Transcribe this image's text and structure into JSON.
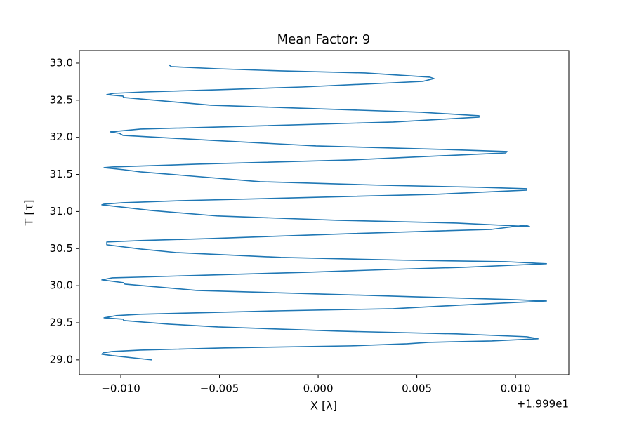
{
  "chart_data": {
    "type": "line",
    "title": "Mean Factor: 9",
    "x_label": "X [λ]",
    "y_label": "T [τ]",
    "x_offset_text": "+1.999e1",
    "xlim": [
      19.9779,
      20.0027
    ],
    "ylim": [
      28.8,
      33.17
    ],
    "xticks": [
      {
        "value": 19.98,
        "label": "−0.010"
      },
      {
        "value": 19.985,
        "label": "−0.005"
      },
      {
        "value": 19.99,
        "label": "0.000"
      },
      {
        "value": 19.995,
        "label": "0.005"
      },
      {
        "value": 20.0,
        "label": "0.010"
      }
    ],
    "yticks": [
      {
        "value": 29,
        "label": "29.0"
      },
      29.5,
      {
        "value": 30,
        "label": "30.0"
      },
      30.5,
      {
        "value": 31,
        "label": "31.0"
      },
      31.5,
      {
        "value": 32,
        "label": "32.0"
      },
      32.5,
      {
        "value": 33,
        "label": "33.0"
      }
    ],
    "grid": false,
    "x": [
      19.98157,
      19.97957,
      19.97904,
      19.97911,
      19.97957,
      19.981,
      19.98527,
      19.99167,
      19.99452,
      19.99559,
      19.99879,
      20.00114,
      20.00057,
      19.99701,
      19.99096,
      19.98491,
      19.98242,
      19.98014,
      19.98014,
      19.97915,
      19.97975,
      19.981,
      19.98384,
      19.98811,
      19.99381,
      19.99719,
      20.00157,
      19.99986,
      19.99488,
      19.98883,
      19.98384,
      19.98021,
      19.98014,
      19.97904,
      19.97957,
      19.981,
      19.98456,
      19.98954,
      19.99381,
      19.99737,
      20.00157,
      19.9995,
      19.99452,
      19.98811,
      19.98278,
      19.981,
      19.97929,
      19.97929,
      19.981,
      19.98456,
      19.99167,
      19.99879,
      20.0005,
      20.00071,
      19.99701,
      19.99096,
      19.98491,
      19.98153,
      19.97904,
      19.97915,
      19.98011,
      19.98313,
      19.98883,
      19.99594,
      20.00057,
      20.00057,
      19.99826,
      19.9931,
      19.98705,
      19.981,
      19.98014,
      19.97915,
      19.97957,
      19.98384,
      19.99167,
      19.9995,
      19.99957,
      19.9963,
      19.98989,
      19.98456,
      19.98011,
      19.97993,
      19.97947,
      19.981,
      19.98633,
      19.99381,
      19.99815,
      19.99815,
      19.99523,
      19.98883,
      19.98456,
      19.98014,
      19.98011,
      19.97929,
      19.97964,
      19.98121,
      19.98491,
      19.98918,
      19.99381,
      19.9953,
      19.99587,
      19.99566,
      19.99238,
      19.98811,
      19.98491,
      19.98256,
      19.98242
    ],
    "series": [
      {
        "color": "#1f77b4",
        "values": [
          29.0,
          29.057,
          29.076,
          29.095,
          29.113,
          29.132,
          29.161,
          29.189,
          29.217,
          29.236,
          29.255,
          29.284,
          29.312,
          29.35,
          29.388,
          29.444,
          29.482,
          29.53,
          29.548,
          29.567,
          29.596,
          29.615,
          29.634,
          29.662,
          29.69,
          29.738,
          29.794,
          29.813,
          29.851,
          29.898,
          29.936,
          30.021,
          30.04,
          30.078,
          30.106,
          30.116,
          30.144,
          30.182,
          30.22,
          30.248,
          30.296,
          30.324,
          30.343,
          30.381,
          30.447,
          30.494,
          30.551,
          30.589,
          30.608,
          30.636,
          30.702,
          30.759,
          30.816,
          30.797,
          30.844,
          30.882,
          30.939,
          31.014,
          31.09,
          31.099,
          31.118,
          31.147,
          31.184,
          31.232,
          31.288,
          31.307,
          31.326,
          31.355,
          31.402,
          31.534,
          31.563,
          31.591,
          31.6,
          31.638,
          31.695,
          31.79,
          31.809,
          31.837,
          31.884,
          31.96,
          32.026,
          32.054,
          32.073,
          32.111,
          32.149,
          32.206,
          32.272,
          32.291,
          32.338,
          32.395,
          32.433,
          32.537,
          32.556,
          32.575,
          32.593,
          32.612,
          32.641,
          32.678,
          32.735,
          32.754,
          32.792,
          32.811,
          32.868,
          32.896,
          32.924,
          32.953,
          32.981
        ]
      }
    ]
  }
}
